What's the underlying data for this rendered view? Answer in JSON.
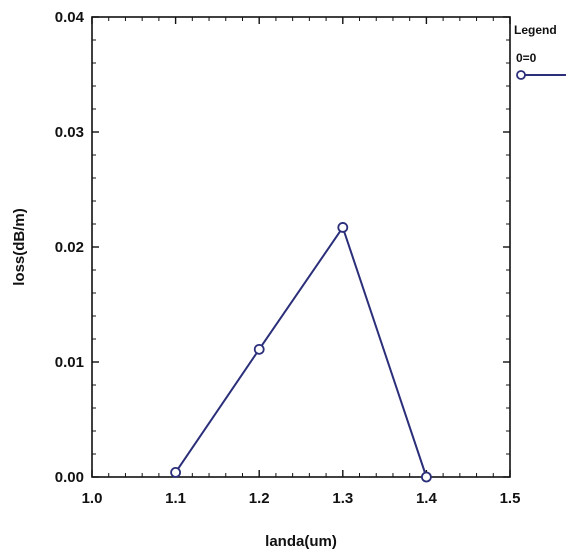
{
  "chart_data": {
    "type": "line",
    "title": "",
    "xlabel": "landa(um)",
    "ylabel": "loss(dB/m)",
    "xlim": [
      1.0,
      1.5
    ],
    "ylim": [
      0.0,
      0.04
    ],
    "x_ticks": [
      "1.0",
      "1.1",
      "1.2",
      "1.3",
      "1.4",
      "1.5"
    ],
    "y_ticks": [
      "0.00",
      "0.01",
      "0.02",
      "0.03",
      "0.04"
    ],
    "grid": false,
    "legend": {
      "title": "Legend",
      "placement": "right",
      "entries": [
        "0=0"
      ]
    },
    "series": [
      {
        "x": [
          1.1,
          1.2,
          1.3,
          1.4
        ],
        "y": [
          0.0004,
          0.0111,
          0.0217,
          0.0
        ],
        "color": "#2b2f7a",
        "marker": "circle"
      }
    ]
  }
}
